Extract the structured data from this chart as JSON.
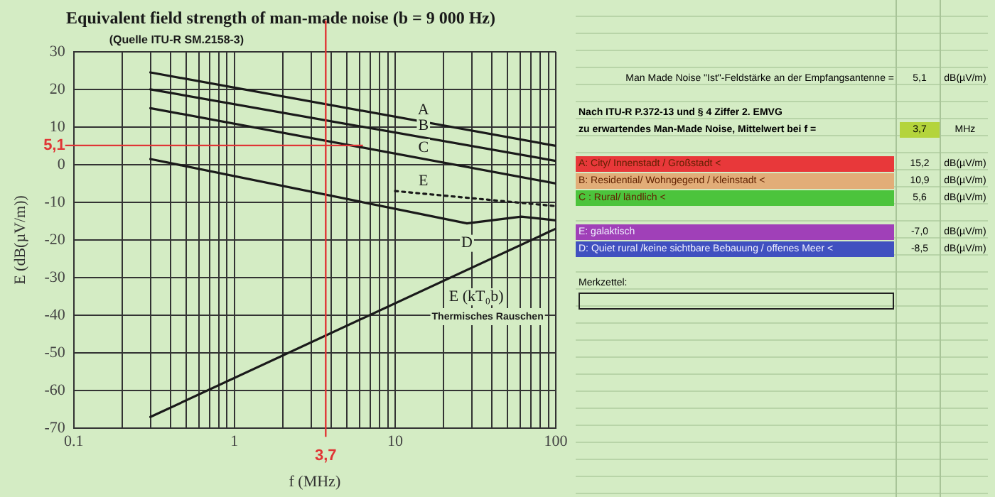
{
  "chart_data": {
    "type": "line",
    "title": "Equivalent field strength of man-made noise (b = 9 000 Hz)",
    "subtitle": "(Quelle ITU-R SM.2158-3)",
    "xlabel": "f (MHz)",
    "ylabel": "E (dB(µV/m))",
    "log": "x",
    "grid": true,
    "legend": false,
    "marker": "none",
    "xlim": [
      0.1,
      100
    ],
    "xticks": [
      0.1,
      {
        "value": 0.2,
        "label": null
      },
      {
        "value": 0.3,
        "label": null
      },
      {
        "value": 0.4,
        "label": null
      },
      {
        "value": 0.5,
        "label": null
      },
      {
        "value": 0.6,
        "label": null
      },
      {
        "value": 0.7,
        "label": null
      },
      {
        "value": 0.8,
        "label": null
      },
      {
        "value": 0.9,
        "label": null
      },
      1,
      {
        "value": 2,
        "label": null
      },
      {
        "value": 3,
        "label": null
      },
      {
        "value": 4,
        "label": null
      },
      {
        "value": 5,
        "label": null
      },
      {
        "value": 6,
        "label": null
      },
      {
        "value": 7,
        "label": null
      },
      {
        "value": 8,
        "label": null
      },
      {
        "value": 9,
        "label": null
      },
      10,
      {
        "value": 20,
        "label": null
      },
      {
        "value": 30,
        "label": null
      },
      {
        "value": 40,
        "label": null
      },
      {
        "value": 50,
        "label": null
      },
      {
        "value": 60,
        "label": null
      },
      {
        "value": 70,
        "label": null
      },
      {
        "value": 80,
        "label": null
      },
      {
        "value": 90,
        "label": null
      },
      100
    ],
    "ylim": [
      -70,
      30
    ],
    "yticks": [
      -70,
      -60,
      -50,
      -40,
      -30,
      -20,
      -10,
      0,
      10,
      20,
      30
    ],
    "series": [
      {
        "name": "A",
        "color": "#1a1a1a",
        "x": [
          0.3,
          100
        ],
        "values": [
          24.5,
          5
        ]
      },
      {
        "name": "B",
        "color": "#1a1a1a",
        "x": [
          0.3,
          100
        ],
        "values": [
          20,
          1
        ]
      },
      {
        "name": "C",
        "color": "#1a1a1a",
        "x": [
          0.3,
          100
        ],
        "values": [
          15,
          -5
        ]
      },
      {
        "name": "E",
        "color": "#1a1a1a",
        "line_style": "dotted",
        "x": [
          10,
          100
        ],
        "values": [
          -7,
          -11
        ]
      },
      {
        "name": "D",
        "color": "#1a1a1a",
        "x": [
          0.3,
          28,
          61,
          100
        ],
        "values": [
          1.5,
          -15.6,
          -13.8,
          -14.8
        ]
      },
      {
        "name": "E (kT₀b)",
        "color": "#1a1a1a",
        "x": [
          0.3,
          100
        ],
        "values": [
          -67,
          -17
        ]
      }
    ],
    "ref_lines": [
      {
        "axis": "x",
        "value": 3.7,
        "label": "3,7",
        "color": "#e03535"
      },
      {
        "axis": "y",
        "value": 5.1,
        "label": "5,1",
        "color": "#e03535"
      }
    ],
    "annotations": [
      "Thermisches Rauschen",
      "Man Made Noise \"Ist\"-Feldstärke an der Empfangsantenne =",
      "5,1",
      "dB(µV/m)",
      "Nach ITU-R P.372-13 und § 4 Ziffer 2. EMVG",
      "zu erwartendes Man-Made Noise, Mittelwert bei f =",
      "3,7",
      "MHz",
      "A: City/  Innenstadt / Großstadt <",
      "15,2",
      "dB(µV/m)",
      "B: Residential/ Wohngegend / Kleinstadt <",
      "10,9",
      "dB(µV/m)",
      "C : Rural/ ländlich <",
      "5,6",
      "dB(µV/m)",
      "E: galaktisch",
      "-7,0",
      "dB(µV/m)",
      "D: Quiet rural /keine sichtbare Bebauung / offenes Meer <",
      "-8,5",
      "dB(µV/m)",
      "Merkzettel:"
    ]
  }
}
